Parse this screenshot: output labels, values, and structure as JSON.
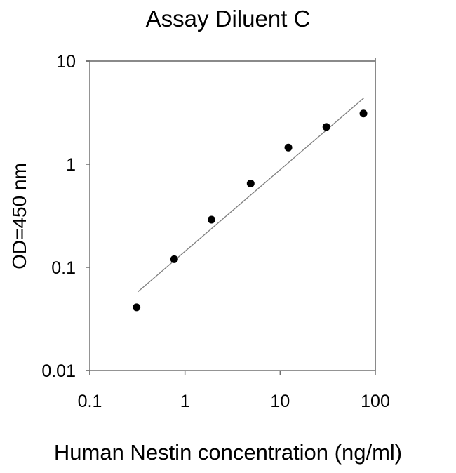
{
  "chart_data": {
    "type": "scatter",
    "title": "Assay Diluent C",
    "xlabel": "Human Nestin concentration (ng/ml)",
    "ylabel": "OD=450 nm",
    "x_scale": "log",
    "y_scale": "log",
    "xlim": [
      0.1,
      100
    ],
    "ylim": [
      0.01,
      10
    ],
    "x_ticks": [
      "0.1",
      "1",
      "10",
      "100"
    ],
    "y_ticks": [
      "0.01",
      "0.1",
      "1",
      "10"
    ],
    "grid": false,
    "legend": null,
    "series": [
      {
        "name": "data",
        "marker": "filled-circle",
        "x": [
          0.31,
          0.77,
          1.9,
          4.9,
          12.2,
          30.6,
          75
        ],
        "y": [
          0.041,
          0.12,
          0.29,
          0.65,
          1.45,
          2.3,
          3.1
        ]
      },
      {
        "name": "fit",
        "style": "line",
        "x": [
          0.32,
          76
        ],
        "y": [
          0.058,
          4.4
        ]
      }
    ],
    "colors": {
      "points": "#000000",
      "fit_line": "#808080",
      "axes": "#707070"
    }
  }
}
